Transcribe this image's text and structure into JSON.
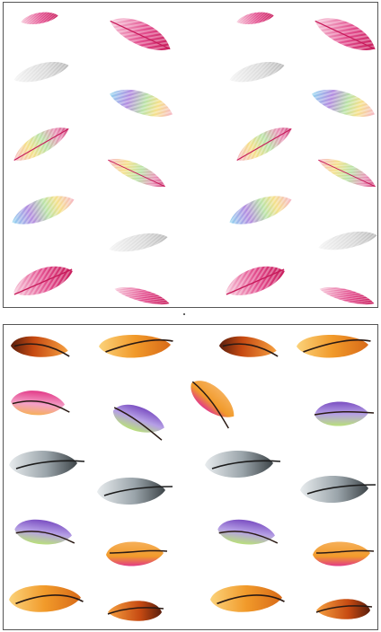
{
  "image": {
    "panels": [
      {
        "name": "pastel-feather-pattern",
        "style": "striped-leaf",
        "palette": {
          "pink": [
            "#f7c8da",
            "#e24b8c",
            "#c71a5a"
          ],
          "rainbow": [
            "#f6b6c8",
            "#f5e08a",
            "#b8e2a6",
            "#8fd6f0",
            "#b38be0"
          ],
          "gray": [
            "#ececec",
            "#cfcfcf",
            "#a9a9a9"
          ]
        },
        "feathers": [
          {
            "variant": "pink"
          },
          {
            "variant": "pink"
          },
          {
            "variant": "pink"
          },
          {
            "variant": "pink"
          },
          {
            "variant": "gray"
          },
          {
            "variant": "gray"
          },
          {
            "variant": "rainbow"
          },
          {
            "variant": "rainbow"
          },
          {
            "variant": "rainbow"
          },
          {
            "variant": "rainbow"
          },
          {
            "variant": "rainbow"
          },
          {
            "variant": "rainbow"
          },
          {
            "variant": "rainbow"
          },
          {
            "variant": "rainbow"
          },
          {
            "variant": "gray"
          },
          {
            "variant": "gray"
          },
          {
            "variant": "pink"
          },
          {
            "variant": "pink"
          },
          {
            "variant": "pink"
          },
          {
            "variant": "pink"
          }
        ]
      },
      {
        "name": "warm-feather-pattern",
        "style": "plump-quill",
        "palette": {
          "orange": [
            "#fbd27a",
            "#f19a2a",
            "#c64a12"
          ],
          "magenta": [
            "#f4a0c8",
            "#e23b88",
            "#f6b05a"
          ],
          "violet": [
            "#b6a0e6",
            "#7b4fc2",
            "#b9e07a"
          ],
          "gray": [
            "#e8ecee",
            "#9aa4aa",
            "#3d4448"
          ]
        },
        "feathers": [
          {
            "variant": "orange"
          },
          {
            "variant": "orange"
          },
          {
            "variant": "orange"
          },
          {
            "variant": "orange"
          },
          {
            "variant": "magenta"
          },
          {
            "variant": "violet"
          },
          {
            "variant": "orange"
          },
          {
            "variant": "violet"
          },
          {
            "variant": "gray"
          },
          {
            "variant": "gray"
          },
          {
            "variant": "gray"
          },
          {
            "variant": "gray"
          },
          {
            "variant": "violet"
          },
          {
            "variant": "magenta"
          },
          {
            "variant": "violet"
          },
          {
            "variant": "magenta"
          },
          {
            "variant": "orange"
          },
          {
            "variant": "orange"
          },
          {
            "variant": "orange"
          },
          {
            "variant": "orange"
          }
        ]
      }
    ]
  }
}
